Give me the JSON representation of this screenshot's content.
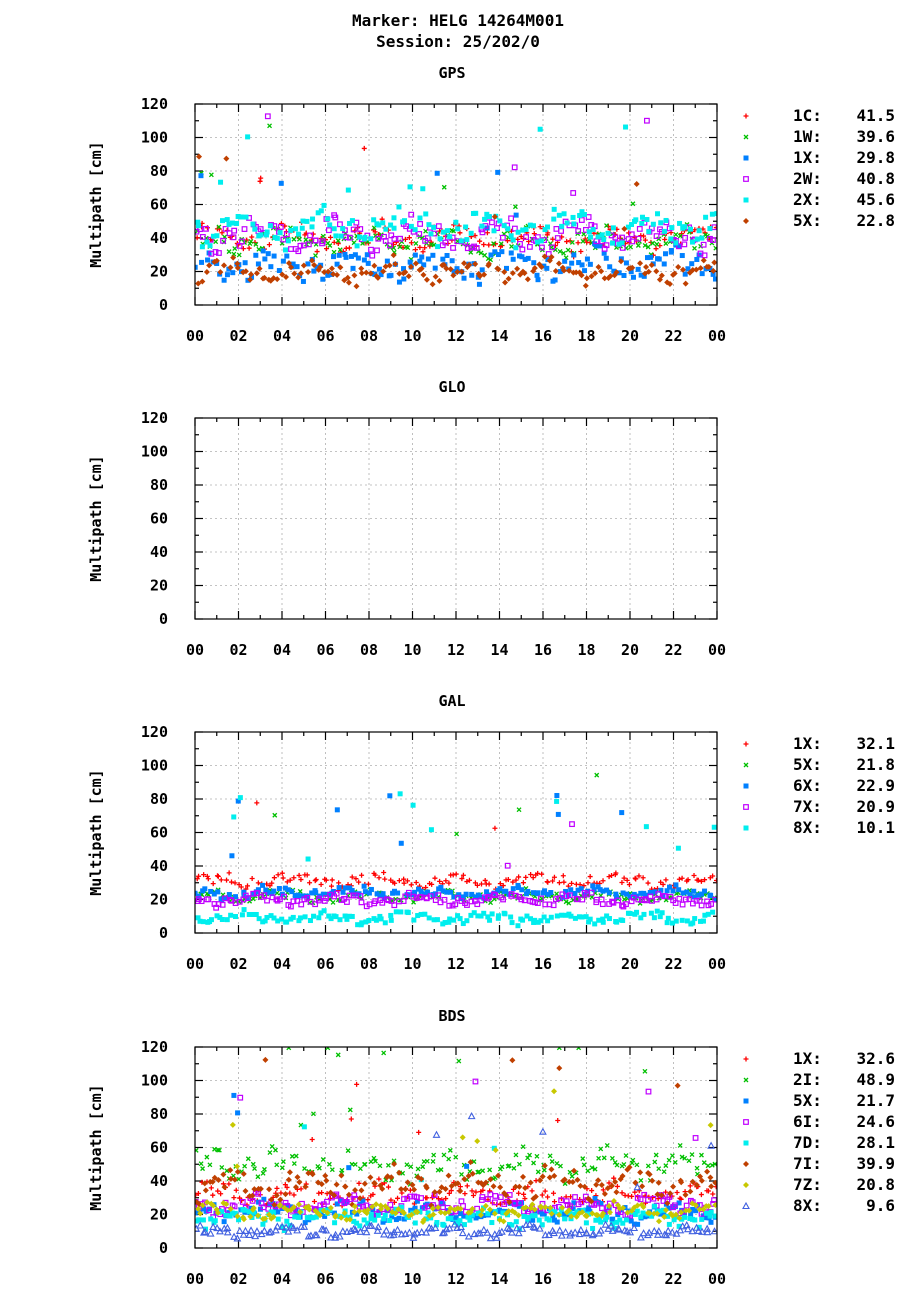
{
  "header": {
    "title_line1": "Marker: HELG 14264M001",
    "title_line2": "Session: 25/202/0"
  },
  "chart_data": [
    {
      "type": "scatter",
      "title": "GPS",
      "ylabel": "Multipath [cm]",
      "ylim": [
        0,
        120
      ],
      "yticks": [
        "0",
        "20",
        "40",
        "60",
        "80",
        "100",
        "120"
      ],
      "xlim": [
        0,
        24
      ],
      "xticks": [
        "00",
        "02",
        "04",
        "06",
        "08",
        "10",
        "12",
        "14",
        "16",
        "18",
        "20",
        "22",
        "00"
      ],
      "grid": true,
      "legend_position": "right",
      "series": [
        {
          "name": "1C:",
          "value": "41.5",
          "color": "#ff0000",
          "marker": "plus",
          "base": 40,
          "spread": 7
        },
        {
          "name": "1W:",
          "value": "39.6",
          "color": "#00c000",
          "marker": "cross",
          "base": 38,
          "spread": 7
        },
        {
          "name": "1X:",
          "value": "29.8",
          "color": "#0080ff",
          "marker": "square",
          "base": 24,
          "spread": 8
        },
        {
          "name": "2W:",
          "value": "40.8",
          "color": "#c000ff",
          "marker": "opensquare",
          "base": 42,
          "spread": 8
        },
        {
          "name": "2X:",
          "value": "45.6",
          "color": "#00eeee",
          "marker": "square",
          "base": 46,
          "spread": 8
        },
        {
          "name": "5X:",
          "value": "22.8",
          "color": "#c04000",
          "marker": "diamond",
          "base": 20,
          "spread": 6
        }
      ]
    },
    {
      "type": "scatter",
      "title": "GLO",
      "ylabel": "Multipath [cm]",
      "ylim": [
        0,
        120
      ],
      "yticks": [
        "0",
        "20",
        "40",
        "60",
        "80",
        "100",
        "120"
      ],
      "xlim": [
        0,
        24
      ],
      "xticks": [
        "00",
        "02",
        "04",
        "06",
        "08",
        "10",
        "12",
        "14",
        "16",
        "18",
        "20",
        "22",
        "00"
      ],
      "grid": true,
      "series": []
    },
    {
      "type": "scatter",
      "title": "GAL",
      "ylabel": "Multipath [cm]",
      "ylim": [
        0,
        120
      ],
      "yticks": [
        "0",
        "20",
        "40",
        "60",
        "80",
        "100",
        "120"
      ],
      "xlim": [
        0,
        24
      ],
      "xticks": [
        "00",
        "02",
        "04",
        "06",
        "08",
        "10",
        "12",
        "14",
        "16",
        "18",
        "20",
        "22",
        "00"
      ],
      "grid": true,
      "legend_position": "right",
      "series": [
        {
          "name": "1X:",
          "value": "32.1",
          "color": "#ff0000",
          "marker": "plus",
          "base": 31,
          "spread": 4
        },
        {
          "name": "5X:",
          "value": "21.8",
          "color": "#00c000",
          "marker": "cross",
          "base": 22,
          "spread": 3
        },
        {
          "name": "6X:",
          "value": "22.9",
          "color": "#0080ff",
          "marker": "square",
          "base": 24,
          "spread": 3
        },
        {
          "name": "7X:",
          "value": "20.9",
          "color": "#c000ff",
          "marker": "opensquare",
          "base": 20,
          "spread": 3
        },
        {
          "name": "8X:",
          "value": "10.1",
          "color": "#00eeee",
          "marker": "square",
          "base": 9,
          "spread": 3
        }
      ]
    },
    {
      "type": "scatter",
      "title": "BDS",
      "ylabel": "Multipath [cm]",
      "ylim": [
        0,
        120
      ],
      "yticks": [
        "0",
        "20",
        "40",
        "60",
        "80",
        "100",
        "120"
      ],
      "xlim": [
        0,
        24
      ],
      "xticks": [
        "00",
        "02",
        "04",
        "06",
        "08",
        "10",
        "12",
        "14",
        "16",
        "18",
        "20",
        "22",
        "00"
      ],
      "grid": true,
      "legend_position": "right",
      "series": [
        {
          "name": "1X:",
          "value": "32.6",
          "color": "#ff0000",
          "marker": "plus",
          "base": 32,
          "spread": 6
        },
        {
          "name": "2I:",
          "value": "48.9",
          "color": "#00c000",
          "marker": "cross",
          "base": 50,
          "spread": 8
        },
        {
          "name": "5X:",
          "value": "21.7",
          "color": "#0080ff",
          "marker": "square",
          "base": 22,
          "spread": 5
        },
        {
          "name": "6I:",
          "value": "24.6",
          "color": "#c000ff",
          "marker": "opensquare",
          "base": 26,
          "spread": 5
        },
        {
          "name": "7D:",
          "value": "28.1",
          "color": "#00eeee",
          "marker": "square",
          "base": 18,
          "spread": 5
        },
        {
          "name": "7I:",
          "value": "39.9",
          "color": "#c04000",
          "marker": "diamond",
          "base": 38,
          "spread": 8
        },
        {
          "name": "7Z:",
          "value": "20.8",
          "color": "#c8c800",
          "marker": "diamond",
          "base": 22,
          "spread": 4
        },
        {
          "name": "8X:",
          "value": " 9.6",
          "color": "#4060e0",
          "marker": "triangle",
          "base": 10,
          "spread": 3
        }
      ]
    }
  ]
}
